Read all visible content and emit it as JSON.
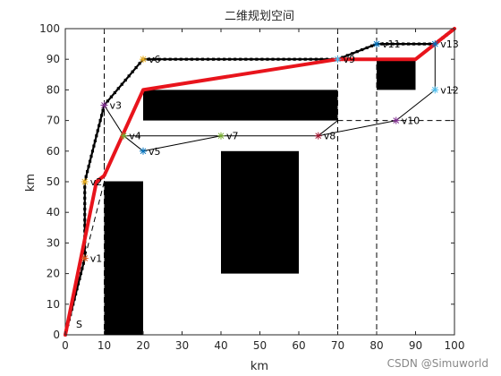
{
  "chart_data": {
    "type": "line",
    "title": "二维规划空间",
    "xlabel": "km",
    "ylabel": "km",
    "xlim": [
      0,
      100
    ],
    "ylim": [
      0,
      100
    ],
    "xticks": [
      0,
      10,
      20,
      30,
      40,
      50,
      60,
      70,
      80,
      90,
      100
    ],
    "yticks": [
      0,
      10,
      20,
      30,
      40,
      50,
      60,
      70,
      80,
      90,
      100
    ],
    "grid": false,
    "obstacles": [
      {
        "x0": 10,
        "y0": 0,
        "x1": 20,
        "y1": 50
      },
      {
        "x0": 20,
        "y0": 70,
        "x1": 70,
        "y1": 80
      },
      {
        "x0": 40,
        "y0": 20,
        "x1": 60,
        "y1": 60
      },
      {
        "x0": 80,
        "y0": 80,
        "x1": 90,
        "y1": 90
      }
    ],
    "vertices": [
      {
        "label": "S",
        "x": 0,
        "y": 0
      },
      {
        "label": "v1",
        "x": 5,
        "y": 25
      },
      {
        "label": "v2",
        "x": 5,
        "y": 50
      },
      {
        "label": "v3",
        "x": 10,
        "y": 75
      },
      {
        "label": "v4",
        "x": 15,
        "y": 65
      },
      {
        "label": "v5",
        "x": 20,
        "y": 60
      },
      {
        "label": "v6",
        "x": 20,
        "y": 90
      },
      {
        "label": "v7",
        "x": 40,
        "y": 65
      },
      {
        "label": "v8",
        "x": 65,
        "y": 65
      },
      {
        "label": "v9",
        "x": 70,
        "y": 90
      },
      {
        "label": "v10",
        "x": 85,
        "y": 70
      },
      {
        "label": "v11",
        "x": 80,
        "y": 95
      },
      {
        "label": "v12",
        "x": 95,
        "y": 80
      },
      {
        "label": "v13",
        "x": 95,
        "y": 95
      }
    ],
    "vertex_colors": [
      "#000000",
      "#D95319",
      "#EDB120",
      "#7E2F8E",
      "#77AC30",
      "#0072BD",
      "#EDB120",
      "#77AC30",
      "#A2142F",
      "#4DBEEE",
      "#7E2F8E",
      "#0072BD",
      "#4DBEEE",
      "#0072BD"
    ],
    "dashed_vertical_x": [
      10,
      70,
      80
    ],
    "dashed_horizontal": [
      {
        "y": 70,
        "x0": 70,
        "x1": 100
      }
    ],
    "network_edges": [
      [
        [
          0,
          0
        ],
        [
          5,
          25
        ],
        [
          10,
          50
        ],
        [
          10,
          75
        ],
        [
          20,
          90
        ]
      ],
      [
        [
          10,
          50
        ],
        [
          20,
          50
        ]
      ],
      [
        [
          10,
          75
        ],
        [
          15,
          65
        ]
      ],
      [
        [
          15,
          65
        ],
        [
          20,
          60
        ]
      ],
      [
        [
          15,
          65
        ],
        [
          40,
          65
        ]
      ],
      [
        [
          20,
          60
        ],
        [
          40,
          65
        ]
      ],
      [
        [
          40,
          65
        ],
        [
          65,
          65
        ]
      ],
      [
        [
          65,
          65
        ],
        [
          70,
          70
        ]
      ],
      [
        [
          65,
          65
        ],
        [
          85,
          70
        ]
      ],
      [
        [
          85,
          70
        ],
        [
          95,
          80
        ]
      ],
      [
        [
          95,
          80
        ],
        [
          95,
          95
        ]
      ],
      [
        [
          95,
          95
        ],
        [
          100,
          100
        ]
      ],
      [
        [
          20,
          90
        ],
        [
          70,
          90
        ]
      ],
      [
        [
          70,
          90
        ],
        [
          80,
          95
        ]
      ],
      [
        [
          80,
          95
        ],
        [
          95,
          95
        ]
      ]
    ],
    "dotted_path": [
      [
        0,
        0
      ],
      [
        5,
        25
      ],
      [
        5,
        50
      ],
      [
        10,
        75
      ],
      [
        20,
        90
      ],
      [
        70,
        90
      ],
      [
        80,
        95
      ],
      [
        95,
        95
      ],
      [
        100,
        100
      ]
    ],
    "optimal_path": [
      [
        0,
        0
      ],
      [
        8,
        50
      ],
      [
        10,
        52
      ],
      [
        20,
        80
      ],
      [
        70,
        90
      ],
      [
        75,
        90
      ],
      [
        90,
        90
      ],
      [
        100,
        100
      ]
    ],
    "series_colors": {
      "optimal": "#E8141C",
      "dotted": "#000000",
      "network": "#000000",
      "obstacle": "#000000"
    }
  },
  "watermark": "CSDN @Simuworld"
}
